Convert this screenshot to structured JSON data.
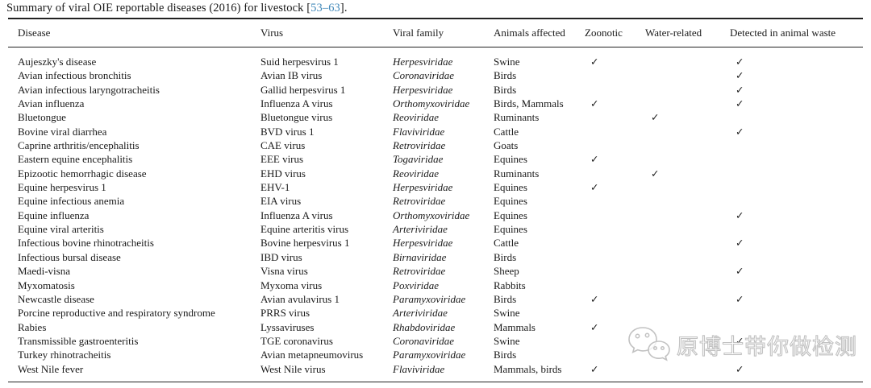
{
  "caption": {
    "prefix": "Summary of viral OIE reportable diseases (2016) for livestock [",
    "citation": "53–63",
    "suffix": "]."
  },
  "colors": {
    "citation_link": "#4289ba",
    "text": "#1a1a1a",
    "rule": "#222222",
    "watermark_gray": "#bcbcbc"
  },
  "table": {
    "columns": [
      "Disease",
      "Virus",
      "Viral family",
      "Animals affected",
      "Zoonotic",
      "Water-related",
      "Detected in animal waste"
    ],
    "check_glyph": "✓",
    "rows": [
      {
        "disease": "Aujeszky's disease",
        "virus": "Suid herpesvirus 1",
        "family": "Herpesviridae",
        "animals": "Swine",
        "zoonotic": true,
        "water": false,
        "waste": true
      },
      {
        "disease": "Avian infectious bronchitis",
        "virus": "Avian IB virus",
        "family": "Coronaviridae",
        "animals": "Birds",
        "zoonotic": false,
        "water": false,
        "waste": true
      },
      {
        "disease": "Avian infectious laryngotracheitis",
        "virus": "Gallid herpesvirus 1",
        "family": "Herpesviridae",
        "animals": "Birds",
        "zoonotic": false,
        "water": false,
        "waste": true
      },
      {
        "disease": "Avian influenza",
        "virus": "Influenza A virus",
        "family": "Orthomyxoviridae",
        "animals": "Birds, Mammals",
        "zoonotic": true,
        "water": false,
        "waste": true
      },
      {
        "disease": "Bluetongue",
        "virus": "Bluetongue virus",
        "family": "Reoviridae",
        "animals": "Ruminants",
        "zoonotic": false,
        "water": true,
        "waste": false
      },
      {
        "disease": "Bovine viral diarrhea",
        "virus": "BVD virus 1",
        "family": "Flaviviridae",
        "animals": "Cattle",
        "zoonotic": false,
        "water": false,
        "waste": true
      },
      {
        "disease": "Caprine arthritis/encephalitis",
        "virus": "CAE virus",
        "family": "Retroviridae",
        "animals": "Goats",
        "zoonotic": false,
        "water": false,
        "waste": false
      },
      {
        "disease": "Eastern equine encephalitis",
        "virus": "EEE virus",
        "family": "Togaviridae",
        "animals": "Equines",
        "zoonotic": true,
        "water": false,
        "waste": false
      },
      {
        "disease": "Epizootic hemorrhagic disease",
        "virus": "EHD virus",
        "family": "Reoviridae",
        "animals": "Ruminants",
        "zoonotic": false,
        "water": true,
        "waste": false
      },
      {
        "disease": "Equine herpesvirus 1",
        "virus": "EHV-1",
        "family": "Herpesviridae",
        "animals": "Equines",
        "zoonotic": true,
        "water": false,
        "waste": false
      },
      {
        "disease": "Equine infectious anemia",
        "virus": "EIA virus",
        "family": "Retroviridae",
        "animals": "Equines",
        "zoonotic": false,
        "water": false,
        "waste": false
      },
      {
        "disease": "Equine influenza",
        "virus": "Influenza A virus",
        "family": "Orthomyxoviridae",
        "animals": "Equines",
        "zoonotic": false,
        "water": false,
        "waste": true
      },
      {
        "disease": "Equine viral arteritis",
        "virus": "Equine arteritis virus",
        "family": "Arteriviridae",
        "animals": "Equines",
        "zoonotic": false,
        "water": false,
        "waste": false
      },
      {
        "disease": "Infectious bovine rhinotracheitis",
        "virus": "Bovine herpesvirus 1",
        "family": "Herpesviridae",
        "animals": "Cattle",
        "zoonotic": false,
        "water": false,
        "waste": true
      },
      {
        "disease": "Infectious bursal disease",
        "virus": "IBD virus",
        "family": "Birnaviridae",
        "animals": "Birds",
        "zoonotic": false,
        "water": false,
        "waste": false
      },
      {
        "disease": "Maedi-visna",
        "virus": "Visna virus",
        "family": "Retroviridae",
        "animals": "Sheep",
        "zoonotic": false,
        "water": false,
        "waste": true
      },
      {
        "disease": "Myxomatosis",
        "virus": "Myxoma virus",
        "family": "Poxviridae",
        "animals": "Rabbits",
        "zoonotic": false,
        "water": false,
        "waste": false
      },
      {
        "disease": "Newcastle disease",
        "virus": "Avian avulavirus 1",
        "family": "Paramyxoviridae",
        "animals": "Birds",
        "zoonotic": true,
        "water": false,
        "waste": true
      },
      {
        "disease": "Porcine reproductive and respiratory syndrome",
        "virus": "PRRS virus",
        "family": "Arteriviridae",
        "animals": "Swine",
        "zoonotic": false,
        "water": false,
        "waste": false
      },
      {
        "disease": "Rabies",
        "virus": "Lyssaviruses",
        "family": "Rhabdoviridae",
        "animals": "Mammals",
        "zoonotic": true,
        "water": false,
        "waste": false
      },
      {
        "disease": "Transmissible gastroenteritis",
        "virus": "TGE coronavirus",
        "family": "Coronaviridae",
        "animals": "Swine",
        "zoonotic": false,
        "water": false,
        "waste": true
      },
      {
        "disease": "Turkey rhinotracheitis",
        "virus": "Avian metapneumovirus",
        "family": "Paramyxoviridae",
        "animals": "Birds",
        "zoonotic": false,
        "water": false,
        "waste": false
      },
      {
        "disease": "West Nile fever",
        "virus": "West Nile virus",
        "family": "Flaviviridae",
        "animals": "Mammals, birds",
        "zoonotic": true,
        "water": false,
        "waste": true
      }
    ]
  },
  "watermark": {
    "icon": "wechat-logo",
    "text": "原博士带你做检测"
  }
}
